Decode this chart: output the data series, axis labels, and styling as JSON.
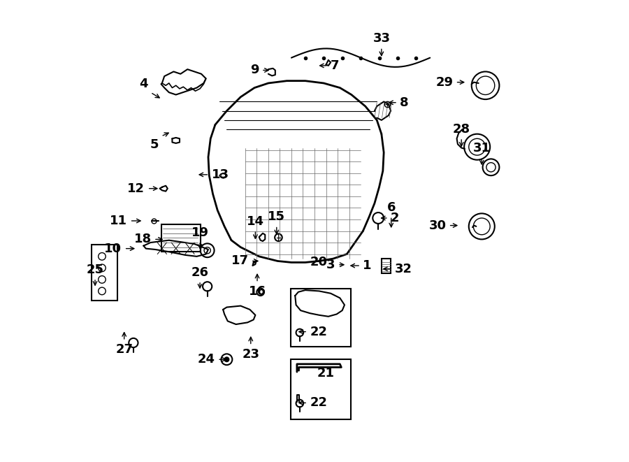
{
  "bg_color": "#ffffff",
  "line_color": "#000000",
  "label_positions": {
    "1": [
      0.6,
      0.425,
      -0.028,
      0.0
    ],
    "2": [
      0.66,
      0.528,
      -0.022,
      0.0
    ],
    "3": [
      0.55,
      0.427,
      0.02,
      0.0
    ],
    "4": [
      0.145,
      0.8,
      0.025,
      -0.015
    ],
    "5": [
      0.168,
      0.705,
      0.022,
      0.01
    ],
    "6": [
      0.666,
      0.532,
      0.0,
      -0.03
    ],
    "7": [
      0.53,
      0.858,
      -0.025,
      0.0
    ],
    "8": [
      0.68,
      0.778,
      -0.025,
      0.0
    ],
    "9": [
      0.385,
      0.848,
      0.022,
      0.0
    ],
    "10": [
      0.088,
      0.462,
      0.028,
      0.0
    ],
    "11": [
      0.1,
      0.522,
      0.03,
      0.0
    ],
    "12": [
      0.138,
      0.592,
      0.028,
      0.0
    ],
    "13": [
      0.272,
      0.622,
      -0.028,
      0.0
    ],
    "14": [
      0.372,
      0.502,
      0.0,
      -0.025
    ],
    "15": [
      0.418,
      0.512,
      0.0,
      -0.025
    ],
    "16": [
      0.376,
      0.388,
      0.0,
      0.025
    ],
    "17": [
      0.362,
      0.435,
      0.022,
      0.0
    ],
    "18": [
      0.152,
      0.482,
      0.025,
      0.0
    ],
    "19": [
      0.252,
      0.478,
      0.0,
      -0.022
    ],
    "20": [
      0.51,
      0.432,
      0.0,
      0.0
    ],
    "21": [
      0.525,
      0.192,
      0.0,
      0.0
    ],
    "22a": [
      0.485,
      0.282,
      -0.025,
      0.0
    ],
    "22b": [
      0.485,
      0.128,
      -0.025,
      0.0
    ],
    "23": [
      0.362,
      0.252,
      0.0,
      0.025
    ],
    "24": [
      0.29,
      0.222,
      0.025,
      0.0
    ],
    "25": [
      0.025,
      0.398,
      0.0,
      -0.022
    ],
    "26": [
      0.252,
      0.392,
      0.0,
      -0.022
    ],
    "27": [
      0.088,
      0.262,
      0.0,
      0.025
    ],
    "28": [
      0.818,
      0.702,
      0.0,
      -0.025
    ],
    "29": [
      0.805,
      0.822,
      0.025,
      0.0
    ],
    "30": [
      0.79,
      0.512,
      0.025,
      0.0
    ],
    "31": [
      0.862,
      0.66,
      0.0,
      -0.022
    ],
    "32": [
      0.668,
      0.418,
      -0.025,
      0.0
    ],
    "33": [
      0.645,
      0.898,
      0.0,
      -0.025
    ]
  }
}
